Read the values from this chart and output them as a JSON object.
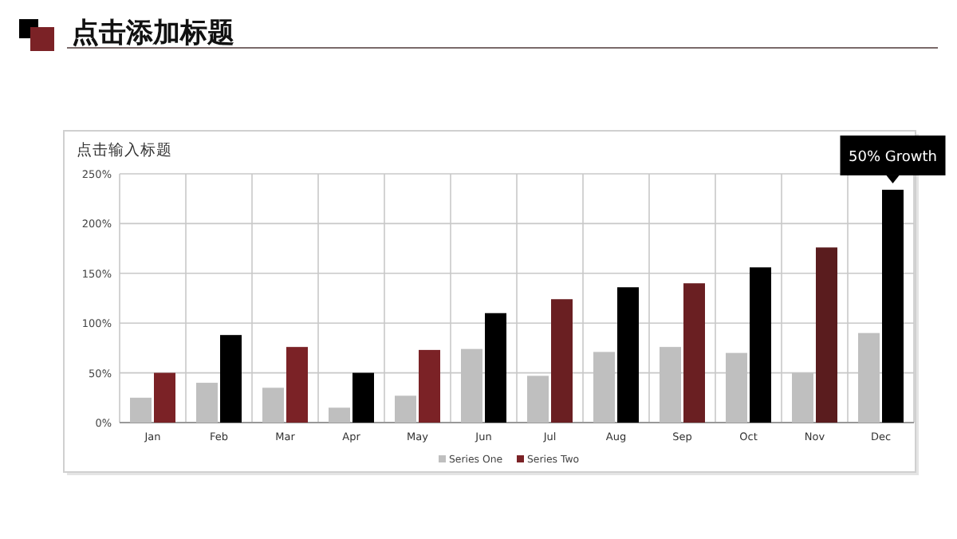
{
  "chart_data": {
    "type": "bar",
    "title": "点击添加标题",
    "subtitle": "点击输入标题",
    "categories": [
      "Jan",
      "Feb",
      "Mar",
      "Apr",
      "May",
      "Jun",
      "Jul",
      "Aug",
      "Sep",
      "Oct",
      "Nov",
      "Dec"
    ],
    "series": [
      {
        "name": "Series One",
        "color": "#bfbfbf",
        "values": [
          25,
          40,
          35,
          15,
          27,
          74,
          47,
          71,
          76,
          70,
          50,
          90
        ]
      },
      {
        "name": "Series Two",
        "color": "#7b2226",
        "colors": [
          "#7b2226",
          "#000000",
          "#7b2226",
          "#000000",
          "#7b2226",
          "#000000",
          "#6a1f22",
          "#000000",
          "#6a1f22",
          "#000000",
          "#5a1c1e",
          "#000000"
        ],
        "values": [
          50,
          88,
          76,
          50,
          73,
          110,
          124,
          136,
          140,
          156,
          176,
          234
        ]
      }
    ],
    "ylim": [
      0,
      250
    ],
    "yticks": [
      {
        "value": 0,
        "label": "0%"
      },
      {
        "value": 50,
        "label": "50%"
      },
      {
        "value": 100,
        "label": "100%"
      },
      {
        "value": 150,
        "label": "150%"
      },
      {
        "value": 200,
        "label": "200%"
      },
      {
        "value": 250,
        "label": "250%"
      }
    ],
    "grid": true,
    "legend": "bottom",
    "annotations": [
      {
        "text": "50% Growth",
        "x": "Dec",
        "y": 234
      }
    ]
  }
}
